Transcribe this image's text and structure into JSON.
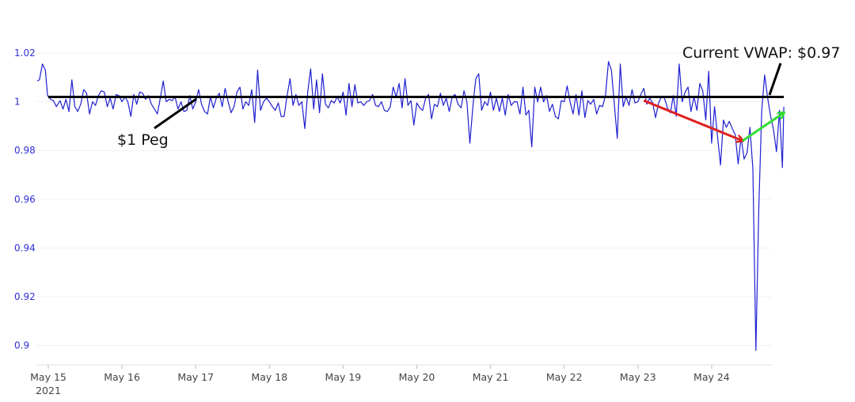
{
  "chart_data": {
    "type": "line",
    "title": "",
    "xlabel": "",
    "ylabel": "",
    "ylim": [
      0.89,
      1.025
    ],
    "xlim": [
      -0.15,
      9.98
    ],
    "grid": true,
    "legend": "none",
    "y_ticks": [
      {
        "value": 1.02,
        "label": "1.02"
      },
      {
        "value": 1.0,
        "label": "1"
      },
      {
        "value": 0.98,
        "label": "0.98"
      },
      {
        "value": 0.96,
        "label": "0.96"
      },
      {
        "value": 0.94,
        "label": "0.94"
      },
      {
        "value": 0.92,
        "label": "0.92"
      },
      {
        "value": 0.9,
        "label": "0.9"
      }
    ],
    "x_ticks": [
      {
        "value": 0,
        "label": "May 15",
        "sublabel": "2021"
      },
      {
        "value": 1,
        "label": "May 16"
      },
      {
        "value": 2,
        "label": "May 17"
      },
      {
        "value": 3,
        "label": "May 18"
      },
      {
        "value": 4,
        "label": "May 19"
      },
      {
        "value": 5,
        "label": "May 20"
      },
      {
        "value": 6,
        "label": "May 21"
      },
      {
        "value": 7,
        "label": "May 22"
      },
      {
        "value": 8,
        "label": "May 23"
      },
      {
        "value": 9,
        "label": "May 24"
      }
    ],
    "series": [
      {
        "color": "#1f1fd2",
        "points": [
          [
            -0.15,
            1.0085
          ],
          [
            -0.12,
            1.009
          ],
          [
            -0.08,
            1.0155
          ],
          [
            -0.04,
            1.013
          ],
          [
            -0.01,
            1.0025
          ],
          [
            0.03,
            1.001
          ],
          [
            0.07,
            1.0005
          ],
          [
            0.11,
            0.998
          ],
          [
            0.16,
            1.0005
          ],
          [
            0.2,
            0.997
          ],
          [
            0.24,
            1.001
          ],
          [
            0.28,
            0.996
          ],
          [
            0.32,
            1.009
          ],
          [
            0.36,
            0.998
          ],
          [
            0.4,
            0.996
          ],
          [
            0.44,
            0.999
          ],
          [
            0.48,
            1.005
          ],
          [
            0.52,
            1.0035
          ],
          [
            0.56,
            0.995
          ],
          [
            0.6,
            1.0
          ],
          [
            0.64,
            0.9985
          ],
          [
            0.68,
            1.0025
          ],
          [
            0.72,
            1.0045
          ],
          [
            0.76,
            1.004
          ],
          [
            0.8,
            0.998
          ],
          [
            0.84,
            1.0015
          ],
          [
            0.88,
            0.997
          ],
          [
            0.92,
            1.003
          ],
          [
            0.96,
            1.0025
          ],
          [
            1.0,
            1.0
          ],
          [
            1.04,
            1.002
          ],
          [
            1.08,
            1.0
          ],
          [
            1.12,
            0.994
          ],
          [
            1.16,
            1.003
          ],
          [
            1.2,
            0.999
          ],
          [
            1.24,
            1.004
          ],
          [
            1.28,
            1.0035
          ],
          [
            1.32,
            1.001
          ],
          [
            1.36,
            1.0025
          ],
          [
            1.4,
            0.999
          ],
          [
            1.44,
            0.997
          ],
          [
            1.48,
            0.995
          ],
          [
            1.52,
            1.0015
          ],
          [
            1.56,
            1.0085
          ],
          [
            1.6,
            1.0
          ],
          [
            1.64,
            1.001
          ],
          [
            1.68,
            1.0005
          ],
          [
            1.72,
            1.002
          ],
          [
            1.76,
            0.997
          ],
          [
            1.8,
            1.0
          ],
          [
            1.84,
            0.996
          ],
          [
            1.88,
            0.9965
          ],
          [
            1.92,
            1.0025
          ],
          [
            1.96,
            0.997
          ],
          [
            2.0,
            1.0
          ],
          [
            2.04,
            1.005
          ],
          [
            2.08,
            0.999
          ],
          [
            2.12,
            0.996
          ],
          [
            2.16,
            0.995
          ],
          [
            2.2,
            1.002
          ],
          [
            2.24,
            0.9975
          ],
          [
            2.28,
            1.0015
          ],
          [
            2.32,
            1.0035
          ],
          [
            2.36,
            0.998
          ],
          [
            2.4,
            1.0055
          ],
          [
            2.44,
            1.0
          ],
          [
            2.48,
            0.9955
          ],
          [
            2.52,
            0.998
          ],
          [
            2.56,
            1.004
          ],
          [
            2.6,
            1.006
          ],
          [
            2.64,
            0.997
          ],
          [
            2.68,
            1.0
          ],
          [
            2.72,
            0.9985
          ],
          [
            2.76,
            1.005
          ],
          [
            2.8,
            0.9915
          ],
          [
            2.84,
            1.013
          ],
          [
            2.88,
            0.9965
          ],
          [
            2.92,
            1.0
          ],
          [
            2.96,
            1.0015
          ],
          [
            3.0,
            1.0
          ],
          [
            3.04,
            0.998
          ],
          [
            3.08,
            0.9965
          ],
          [
            3.12,
            0.9995
          ],
          [
            3.16,
            0.994
          ],
          [
            3.2,
            0.994
          ],
          [
            3.24,
            1.0025
          ],
          [
            3.28,
            1.0095
          ],
          [
            3.32,
            0.9985
          ],
          [
            3.36,
            1.003
          ],
          [
            3.4,
            0.9985
          ],
          [
            3.44,
            1.0
          ],
          [
            3.48,
            0.989
          ],
          [
            3.52,
            1.004
          ],
          [
            3.56,
            1.0135
          ],
          [
            3.6,
            0.997
          ],
          [
            3.64,
            1.009
          ],
          [
            3.68,
            0.9955
          ],
          [
            3.72,
            1.0115
          ],
          [
            3.76,
            0.999
          ],
          [
            3.8,
            0.9975
          ],
          [
            3.84,
            1.0005
          ],
          [
            3.88,
            0.9995
          ],
          [
            3.92,
            1.002
          ],
          [
            3.96,
            0.9995
          ],
          [
            4.0,
            1.004
          ],
          [
            4.04,
            0.9945
          ],
          [
            4.08,
            1.0075
          ],
          [
            4.12,
            0.998
          ],
          [
            4.16,
            1.007
          ],
          [
            4.2,
            0.9995
          ],
          [
            4.24,
            1.0
          ],
          [
            4.28,
            0.9985
          ],
          [
            4.32,
            1.0
          ],
          [
            4.36,
            1.0005
          ],
          [
            4.4,
            1.003
          ],
          [
            4.44,
            0.9985
          ],
          [
            4.48,
            0.998
          ],
          [
            4.52,
            1.0
          ],
          [
            4.56,
            0.9965
          ],
          [
            4.6,
            0.996
          ],
          [
            4.64,
            0.998
          ],
          [
            4.68,
            1.006
          ],
          [
            4.72,
            1.002
          ],
          [
            4.76,
            1.0075
          ],
          [
            4.8,
            0.9975
          ],
          [
            4.84,
            1.0095
          ],
          [
            4.88,
            0.9985
          ],
          [
            4.92,
            1.0005
          ],
          [
            4.96,
            0.9905
          ],
          [
            5.0,
            0.9995
          ],
          [
            5.04,
            0.9975
          ],
          [
            5.08,
            0.9965
          ],
          [
            5.12,
            1.0015
          ],
          [
            5.16,
            1.003
          ],
          [
            5.2,
            0.993
          ],
          [
            5.24,
            0.999
          ],
          [
            5.28,
            0.998
          ],
          [
            5.32,
            1.0035
          ],
          [
            5.36,
            0.9985
          ],
          [
            5.4,
            1.0015
          ],
          [
            5.44,
            0.996
          ],
          [
            5.48,
            1.002
          ],
          [
            5.52,
            1.003
          ],
          [
            5.56,
            0.999
          ],
          [
            5.6,
            0.9975
          ],
          [
            5.64,
            1.0045
          ],
          [
            5.68,
            1.0
          ],
          [
            5.72,
            0.983
          ],
          [
            5.76,
            0.998
          ],
          [
            5.8,
            1.0095
          ],
          [
            5.84,
            1.0115
          ],
          [
            5.88,
            0.9965
          ],
          [
            5.92,
            1.0
          ],
          [
            5.96,
            0.9985
          ],
          [
            6.0,
            1.004
          ],
          [
            6.04,
            0.9965
          ],
          [
            6.08,
            1.0015
          ],
          [
            6.12,
            0.996
          ],
          [
            6.16,
            1.0015
          ],
          [
            6.2,
            0.9945
          ],
          [
            6.24,
            1.003
          ],
          [
            6.28,
            0.9985
          ],
          [
            6.32,
            1.0
          ],
          [
            6.36,
            1.0
          ],
          [
            6.4,
            0.995
          ],
          [
            6.44,
            1.006
          ],
          [
            6.48,
            0.9945
          ],
          [
            6.52,
            0.9965
          ],
          [
            6.56,
            0.9815
          ],
          [
            6.6,
            1.006
          ],
          [
            6.64,
            1.0
          ],
          [
            6.68,
            1.006
          ],
          [
            6.72,
            1.0
          ],
          [
            6.76,
            1.0025
          ],
          [
            6.8,
            0.996
          ],
          [
            6.84,
            0.999
          ],
          [
            6.88,
            0.994
          ],
          [
            6.92,
            0.993
          ],
          [
            6.96,
            1.0005
          ],
          [
            7.0,
            1.0
          ],
          [
            7.04,
            1.0065
          ],
          [
            7.08,
            1.0
          ],
          [
            7.12,
            0.995
          ],
          [
            7.16,
            1.003
          ],
          [
            7.2,
            0.9945
          ],
          [
            7.24,
            1.0045
          ],
          [
            7.28,
            0.9935
          ],
          [
            7.32,
            1.0005
          ],
          [
            7.36,
            0.999
          ],
          [
            7.4,
            1.001
          ],
          [
            7.44,
            0.995
          ],
          [
            7.48,
            0.9985
          ],
          [
            7.52,
            0.998
          ],
          [
            7.56,
            1.0025
          ],
          [
            7.6,
            1.0165
          ],
          [
            7.64,
            1.013
          ],
          [
            7.68,
            0.999
          ],
          [
            7.72,
            0.985
          ],
          [
            7.76,
            1.0155
          ],
          [
            7.8,
            0.998
          ],
          [
            7.84,
            1.002
          ],
          [
            7.88,
            0.9985
          ],
          [
            7.92,
            1.005
          ],
          [
            7.96,
            0.9995
          ],
          [
            8.0,
            1.0
          ],
          [
            8.04,
            1.003
          ],
          [
            8.08,
            1.0055
          ],
          [
            8.12,
            0.999
          ],
          [
            8.16,
            1.0015
          ],
          [
            8.2,
            0.9995
          ],
          [
            8.24,
            0.9935
          ],
          [
            8.28,
            0.9995
          ],
          [
            8.32,
            1.002
          ],
          [
            8.36,
            1.0015
          ],
          [
            8.4,
            0.9975
          ],
          [
            8.44,
            0.9955
          ],
          [
            8.48,
            1.0025
          ],
          [
            8.52,
            0.994
          ],
          [
            8.56,
            1.0155
          ],
          [
            8.6,
            1.0
          ],
          [
            8.64,
            1.004
          ],
          [
            8.68,
            1.006
          ],
          [
            8.72,
            0.996
          ],
          [
            8.76,
            1.002
          ],
          [
            8.8,
            0.9965
          ],
          [
            8.84,
            1.0075
          ],
          [
            8.88,
            1.0045
          ],
          [
            8.92,
            0.9925
          ],
          [
            8.96,
            1.0125
          ],
          [
            9.0,
            0.983
          ],
          [
            9.04,
            0.998
          ],
          [
            9.08,
            0.986
          ],
          [
            9.12,
            0.974
          ],
          [
            9.16,
            0.9925
          ],
          [
            9.2,
            0.9895
          ],
          [
            9.24,
            0.992
          ],
          [
            9.28,
            0.989
          ],
          [
            9.32,
            0.9865
          ],
          [
            9.36,
            0.9745
          ],
          [
            9.4,
            0.9855
          ],
          [
            9.44,
            0.9765
          ],
          [
            9.48,
            0.979
          ],
          [
            9.52,
            0.9895
          ],
          [
            9.56,
            0.9725
          ],
          [
            9.6,
            0.898
          ],
          [
            9.64,
            0.9565
          ],
          [
            9.68,
            0.9965
          ],
          [
            9.72,
            1.011
          ],
          [
            9.76,
            1.0015
          ],
          [
            9.8,
            0.994
          ],
          [
            9.84,
            0.9885
          ],
          [
            9.88,
            0.9795
          ],
          [
            9.92,
            0.9965
          ],
          [
            9.96,
            0.973
          ],
          [
            9.98,
            0.998
          ]
        ]
      }
    ],
    "annotations": [
      {
        "text": "$1 Peg"
      },
      {
        "text": "Current VWAP: $0.97"
      }
    ],
    "peg_line": {
      "value": 1.002,
      "x_start": 0.0,
      "x_end": 9.98,
      "color": "#000000"
    },
    "arrows": [
      {
        "color": "#e02020",
        "from": [
          8.08,
          1.0005
        ],
        "to": [
          9.42,
          0.984
        ]
      },
      {
        "color": "#33dd33",
        "from": [
          9.42,
          0.984
        ],
        "to": [
          9.98,
          0.9955
        ]
      }
    ]
  }
}
